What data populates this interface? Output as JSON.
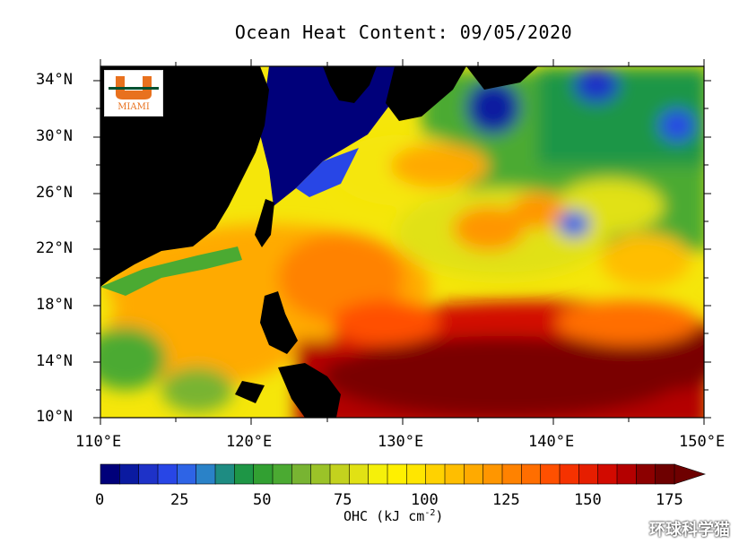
{
  "title": "Ocean Heat Content: 09/05/2020",
  "logo": {
    "name": "University of Miami U logo",
    "text": "MIAMI"
  },
  "latitude_labels": [
    "34°N",
    "30°N",
    "26°N",
    "22°N",
    "18°N",
    "14°N",
    "10°N"
  ],
  "longitude_labels": [
    "110°E",
    "120°E",
    "130°E",
    "140°E",
    "150°E"
  ],
  "colorbar": {
    "tick_labels": [
      "0",
      "25",
      "50",
      "75",
      "100",
      "125",
      "150",
      "175"
    ],
    "label": "OHC (kJ cm",
    "label_exp": "-2",
    "label_close": ")",
    "colors": [
      "#00007a",
      "#0a1aa0",
      "#1e32c8",
      "#2846e6",
      "#2e64e6",
      "#2a82c8",
      "#1e8c82",
      "#1e9646",
      "#32a032",
      "#4baa32",
      "#78b432",
      "#9bc328",
      "#c3d21e",
      "#e1e114",
      "#f5f00a",
      "#fff000",
      "#ffe600",
      "#ffd200",
      "#ffbe00",
      "#ffaa00",
      "#ff9600",
      "#ff8200",
      "#ff6e00",
      "#ff5000",
      "#f53200",
      "#e61e00",
      "#d20a00",
      "#b40000",
      "#8c0000",
      "#6e0000"
    ]
  },
  "watermark": "环球科学猫",
  "colors": {
    "land": "#000000",
    "ocean_high": "#7a0000",
    "ocean_low": "#000080"
  }
}
